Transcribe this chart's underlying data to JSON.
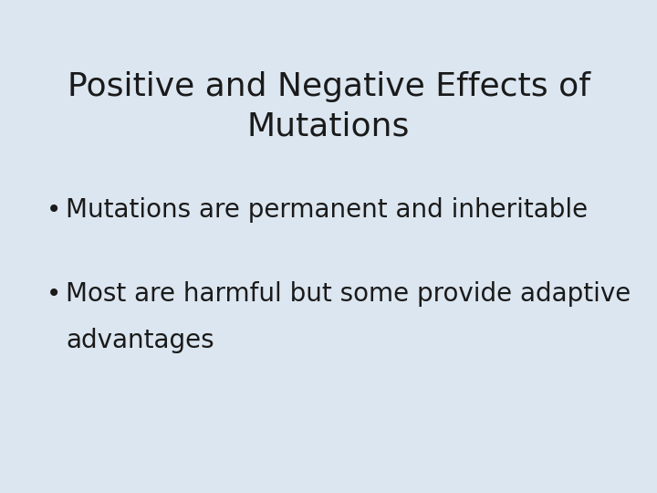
{
  "background_color": "#dce6f0",
  "title_line1": "Positive and Negative Effects of",
  "title_line2": "Mutations",
  "title_fontsize": 26,
  "title_color": "#1a1a1a",
  "bullet_point1": "Mutations are permanent and inheritable",
  "bullet_point2_line1": "Most are harmful but some provide adaptive",
  "bullet_point2_line2": "advantages",
  "bullet_fontsize": 20,
  "bullet_color": "#1a1a1a",
  "bullet_symbol": "•"
}
